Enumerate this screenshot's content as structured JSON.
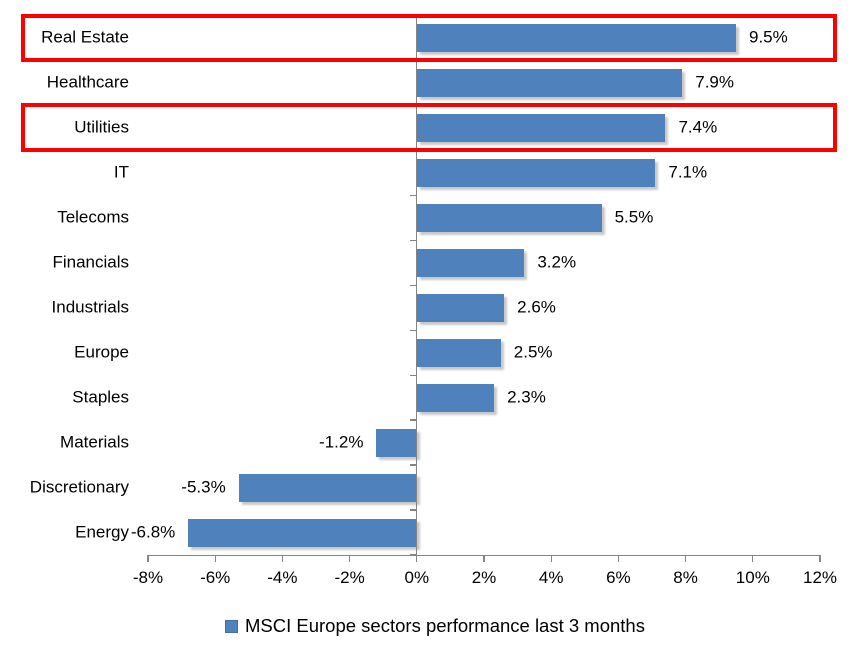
{
  "chart_data": {
    "type": "bar",
    "orientation": "horizontal",
    "title": "",
    "categories": [
      "Real Estate",
      "Healthcare",
      "Utilities",
      "IT",
      "Telecoms",
      "Financials",
      "Industrials",
      "Europe",
      "Staples",
      "Materials",
      "Discretionary",
      "Energy"
    ],
    "values": [
      9.5,
      7.9,
      7.4,
      7.1,
      5.5,
      3.2,
      2.6,
      2.5,
      2.3,
      -1.2,
      -5.3,
      -6.8
    ],
    "value_labels": [
      "9.5%",
      "7.9%",
      "7.4%",
      "7.1%",
      "5.5%",
      "3.2%",
      "2.6%",
      "2.5%",
      "2.3%",
      "-1.2%",
      "-5.3%",
      "-6.8%"
    ],
    "xlim": [
      -8,
      12
    ],
    "x_tick_values": [
      -8,
      -6,
      -4,
      -2,
      0,
      2,
      4,
      6,
      8,
      10,
      12
    ],
    "x_tick_labels": [
      "-8%",
      "-6%",
      "-4%",
      "-2%",
      "0%",
      "2%",
      "4%",
      "6%",
      "8%",
      "10%",
      "12%"
    ],
    "legend": "MSCI Europe sectors performance last 3 months",
    "legend_position": "bottom",
    "grid": false,
    "bar_color": "#4f81bd",
    "axis_color": "#848484",
    "text_color": "#000000",
    "highlight_box_color": "#fe0000",
    "highlighted_categories": [
      "Real Estate",
      "Utilities"
    ]
  }
}
